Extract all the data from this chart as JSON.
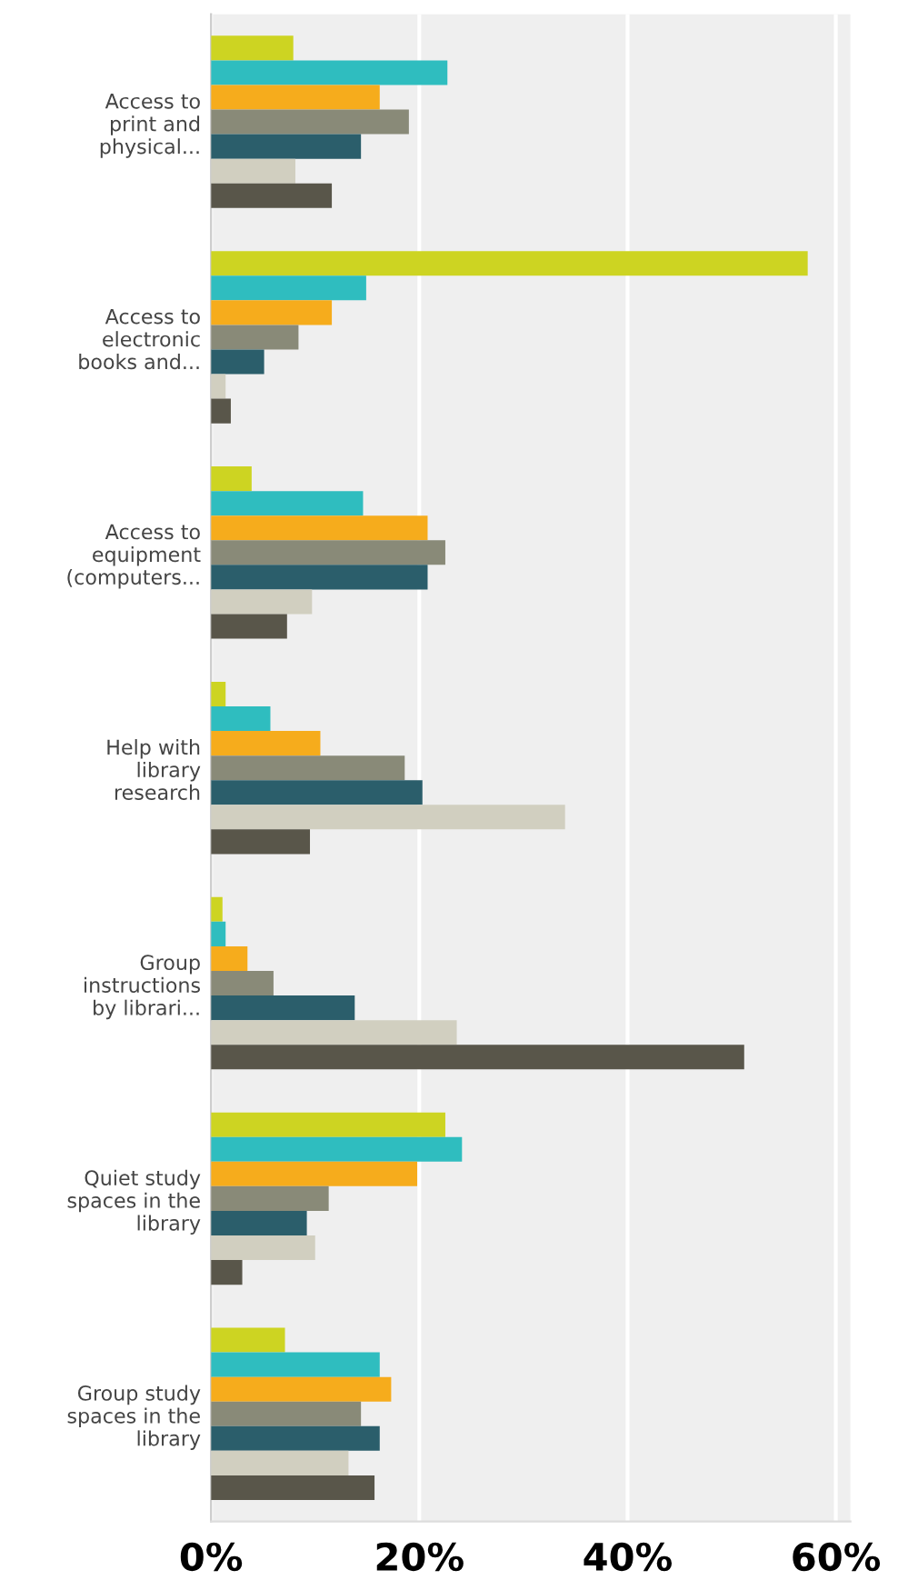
{
  "chart_data": {
    "type": "bar",
    "orientation": "horizontal",
    "categories": [
      "Access to\nprint and\nphysical...",
      "Access to\nelectronic\nbooks and...",
      "Access to\nequipment\n(computers...",
      "Help with\nlibrary\nresearch",
      "Group\ninstructions\nby librari...",
      "Quiet study\nspaces in the\nlibrary",
      "Group study\nspaces in the\nlibrary"
    ],
    "series": [
      {
        "color": "#cdd422",
        "values": [
          7.9,
          57.3,
          3.9,
          1.4,
          1.1,
          22.5,
          7.1
        ]
      },
      {
        "color": "#2fbdbf",
        "values": [
          22.7,
          14.9,
          14.6,
          5.7,
          1.4,
          24.1,
          16.2
        ]
      },
      {
        "color": "#f6ac1c",
        "values": [
          16.2,
          11.6,
          20.8,
          10.5,
          3.5,
          19.8,
          17.3
        ]
      },
      {
        "color": "#898a78",
        "values": [
          19.0,
          8.4,
          22.5,
          18.6,
          6.0,
          11.3,
          14.4
        ]
      },
      {
        "color": "#2b5e6b",
        "values": [
          14.4,
          5.1,
          20.8,
          20.3,
          13.8,
          9.2,
          16.2
        ]
      },
      {
        "color": "#d1cfc0",
        "values": [
          8.1,
          1.4,
          9.7,
          34.0,
          23.6,
          10.0,
          13.2
        ]
      },
      {
        "color": "#59564a",
        "values": [
          11.6,
          1.9,
          7.3,
          9.5,
          51.2,
          3.0,
          15.7
        ]
      }
    ],
    "xlim": [
      0,
      61.4
    ],
    "xticks": [
      {
        "value": 0,
        "label": "0%"
      },
      {
        "value": 20,
        "label": "20%"
      },
      {
        "value": 40,
        "label": "40%"
      },
      {
        "value": 60,
        "label": "60%"
      }
    ],
    "grid": "x",
    "legend": false
  }
}
